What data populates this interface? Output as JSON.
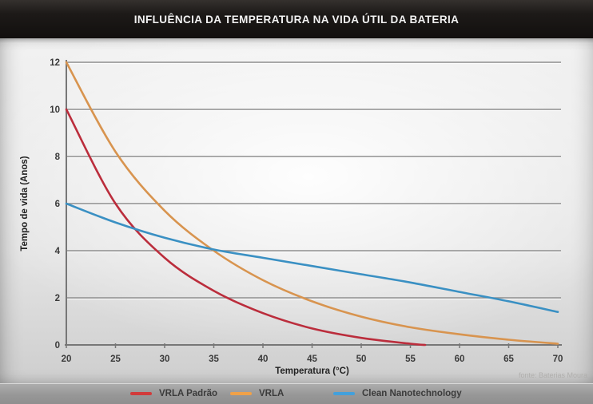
{
  "header": {
    "title": "INFLUÊNCIA DA TEMPERATURA NA VIDA ÚTIL DA BATERIA"
  },
  "footer": {
    "source": "fonte: Baterias Moura"
  },
  "colors": {
    "header_bg": "#1a1715",
    "title_text": "#f2f2f2",
    "plot_bg_center": "#f7f7f7",
    "plot_bg_edge": "#c9c9c9",
    "grid": "#8f8f8f",
    "axis": "#777777",
    "tick_text": "#3a3a3a",
    "legend_bar": "#989898",
    "legend_text": "#3b3b3b",
    "source_text": "#b0afad"
  },
  "legend": {
    "items": [
      {
        "label": "VRLA Padrão",
        "swatch_color": "#d23b3b"
      },
      {
        "label": "VRLA",
        "swatch_color": "#f0a148"
      },
      {
        "label": "Clean Nanotechnology",
        "swatch_color": "#42a0dc"
      }
    ]
  },
  "chart_data": {
    "type": "line",
    "title": "INFLUÊNCIA DA TEMPERATURA NA VIDA ÚTIL DA BATERIA",
    "xlabel": "Temperatura (°C)",
    "ylabel": "Tempo de vida (Anos)",
    "xlim": [
      20,
      70
    ],
    "ylim": [
      0,
      12
    ],
    "x_ticks": [
      20,
      25,
      30,
      35,
      40,
      45,
      50,
      55,
      60,
      65,
      70
    ],
    "y_ticks": [
      0,
      2,
      4,
      6,
      8,
      10,
      12
    ],
    "grid": "horizontal",
    "legend_position": "bottom",
    "series": [
      {
        "name": "VRLA Padrão",
        "color": "#bb2d3c",
        "x": [
          20,
          25,
          30,
          35,
          40,
          45,
          50,
          55,
          56.5
        ],
        "values": [
          10,
          6,
          3.7,
          2.3,
          1.35,
          0.7,
          0.3,
          0.05,
          0
        ]
      },
      {
        "name": "VRLA",
        "color": "#d8944f",
        "x": [
          20,
          25,
          30,
          35,
          40,
          45,
          50,
          55,
          60,
          65,
          70
        ],
        "values": [
          12,
          8.2,
          5.7,
          4,
          2.75,
          1.85,
          1.2,
          0.75,
          0.45,
          0.22,
          0.05
        ]
      },
      {
        "name": "Clean Nanotechnology",
        "color": "#3a90c3",
        "x": [
          20,
          25,
          30,
          35,
          40,
          45,
          50,
          55,
          60,
          65,
          70
        ],
        "values": [
          6,
          5.2,
          4.55,
          4.05,
          3.7,
          3.35,
          3,
          2.65,
          2.25,
          1.85,
          1.4
        ]
      }
    ]
  }
}
